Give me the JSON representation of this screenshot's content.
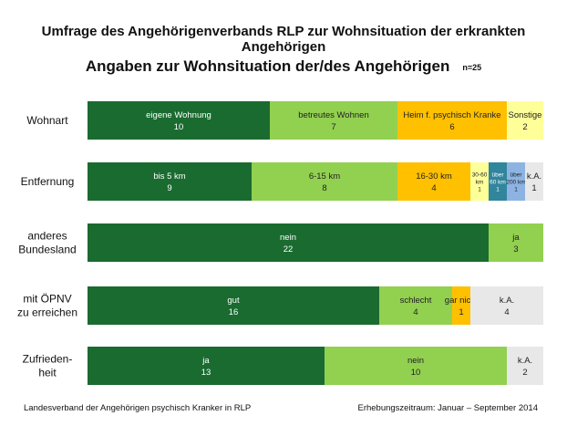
{
  "title": "Umfrage des Angehörigenverbands RLP zur Wohnsituation der erkrankten Angehörigen",
  "subtitle": "Angaben zur Wohnsituation der/des Angehörigen",
  "n_label": "n=25",
  "footer_left": "Landesverband der Angehörigen psychisch Kranker in RLP",
  "footer_right": "Erhebungszeitraum: Januar – September 2014",
  "colors": {
    "dark_green": "#1a6b30",
    "light_green": "#92d050",
    "orange": "#ffc000",
    "light_yellow": "#ffff99",
    "teal": "#31859c",
    "light_blue": "#8db3e2",
    "gray": "#e8e8e8"
  },
  "chart_data": {
    "type": "bar",
    "orientation": "horizontal",
    "stacked": true,
    "total": 25,
    "rows": [
      {
        "category": [
          "Wohnart"
        ],
        "segments": [
          {
            "label": [
              "eigene Wohnung"
            ],
            "value": 10,
            "color": "dark_green"
          },
          {
            "label": [
              "betreutes Wohnen"
            ],
            "value": 7,
            "color": "light_green"
          },
          {
            "label": [
              "Heim f. psychisch Kranke"
            ],
            "value": 6,
            "color": "orange"
          },
          {
            "label": [
              "Sonstige"
            ],
            "value": 2,
            "color": "light_yellow"
          }
        ]
      },
      {
        "category": [
          "Entfernung"
        ],
        "segments": [
          {
            "label": [
              "bis 5 km"
            ],
            "value": 9,
            "color": "dark_green"
          },
          {
            "label": [
              "6-15 km"
            ],
            "value": 8,
            "color": "light_green"
          },
          {
            "label": [
              "16-30 km"
            ],
            "value": 4,
            "color": "orange"
          },
          {
            "label": [
              "30-60",
              "km"
            ],
            "value": 1,
            "color": "light_yellow"
          },
          {
            "label": [
              "über",
              "60 km"
            ],
            "value": 1,
            "color": "teal"
          },
          {
            "label": [
              "über",
              "200 km"
            ],
            "value": 1,
            "color": "light_blue"
          },
          {
            "label": [
              "k.A."
            ],
            "value": 1,
            "color": "gray"
          }
        ]
      },
      {
        "category": [
          "anderes",
          "Bundesland"
        ],
        "segments": [
          {
            "label": [
              "nein"
            ],
            "value": 22,
            "color": "dark_green"
          },
          {
            "label": [
              "ja"
            ],
            "value": 3,
            "color": "light_green"
          }
        ]
      },
      {
        "category": [
          "mit ÖPNV",
          "zu erreichen"
        ],
        "segments": [
          {
            "label": [
              "gut"
            ],
            "value": 16,
            "color": "dark_green"
          },
          {
            "label": [
              "schlecht"
            ],
            "value": 4,
            "color": "light_green"
          },
          {
            "label": [
              "gar nicht"
            ],
            "value": 1,
            "color": "orange"
          },
          {
            "label": [
              "k.A."
            ],
            "value": 4,
            "color": "gray"
          }
        ]
      },
      {
        "category": [
          "Zufrieden-",
          "heit"
        ],
        "segments": [
          {
            "label": [
              "ja"
            ],
            "value": 13,
            "color": "dark_green"
          },
          {
            "label": [
              "nein"
            ],
            "value": 10,
            "color": "light_green"
          },
          {
            "label": [
              "k.A."
            ],
            "value": 2,
            "color": "gray"
          }
        ]
      }
    ]
  }
}
